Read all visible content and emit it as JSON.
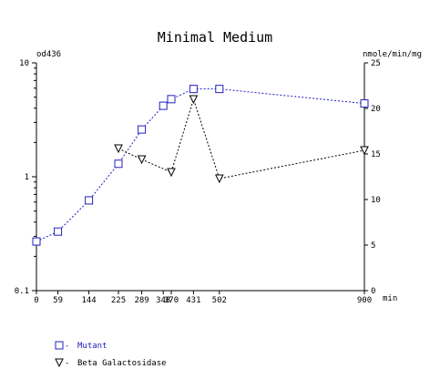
{
  "chart_data": {
    "type": "line",
    "title": "Minimal Medium",
    "xlabel": "min",
    "ylabel_left": "od436",
    "ylabel_right": "nmole/min/mg",
    "x_ticks": [
      0,
      59,
      144,
      225,
      289,
      348,
      370,
      431,
      502,
      900
    ],
    "x_tick_labels": [
      "0",
      "59",
      "144",
      "225",
      "289",
      "348",
      "370",
      "431",
      "502",
      "900"
    ],
    "xlim": [
      0,
      900
    ],
    "y_left": {
      "scale": "log",
      "lim": [
        0.1,
        10
      ],
      "tick_labels": [
        "0.1",
        "1",
        "10"
      ]
    },
    "y_right": {
      "scale": "linear",
      "lim": [
        0,
        25
      ],
      "tick_labels": [
        "0",
        "5",
        "10",
        "15",
        "20",
        "25"
      ]
    },
    "grid": false,
    "legend_position": "bottom-left",
    "series": [
      {
        "name": "Mutant",
        "axis": "left",
        "marker": "square",
        "color": "#2020c0",
        "x": [
          0,
          59,
          144,
          225,
          289,
          348,
          370,
          431,
          502,
          900
        ],
        "y": [
          0.27,
          0.33,
          0.62,
          1.3,
          2.6,
          4.2,
          4.8,
          5.9,
          5.9,
          4.4
        ]
      },
      {
        "name": "Beta Galactosidase",
        "axis": "right",
        "marker": "triangle-down",
        "color": "#000000",
        "x": [
          225,
          289,
          370,
          431,
          502,
          900
        ],
        "y": [
          15.6,
          14.4,
          13.0,
          21.0,
          12.3,
          15.4
        ]
      }
    ]
  }
}
